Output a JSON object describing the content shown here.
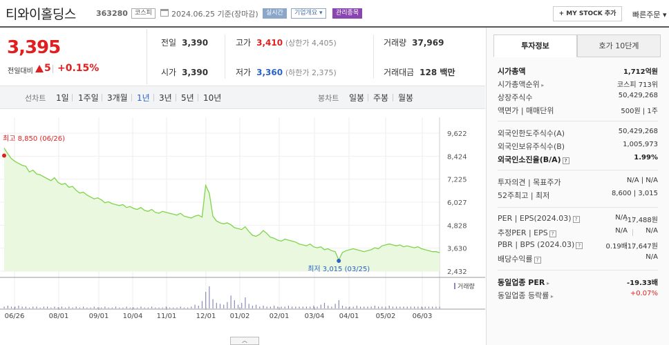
{
  "header": {
    "name": "티와이홀딩스",
    "code": "363280",
    "market": "코스피",
    "date": "2024.06.25 기준(장마감)",
    "live_badge": "실시간",
    "info_badge": "기업개요 ▾",
    "manage_badge": "관리종목",
    "mystock_button": "+ MY STOCK 추가",
    "quick_order": "빠른주문 ▾"
  },
  "price": {
    "current": "3,395",
    "change_label": "전일대비",
    "change": "5",
    "change_pct": "+0.15%"
  },
  "quote": {
    "prev_label": "전일",
    "prev": "3,390",
    "high_label": "고가",
    "high": "3,410",
    "upper": "(상한가 4,405)",
    "volume_label": "거래량",
    "volume": "37,969",
    "open_label": "시가",
    "open": "3,390",
    "low_label": "저가",
    "low": "3,360",
    "lower": "(하한가 2,375)",
    "amount_label": "거래대금",
    "amount": "128 백만"
  },
  "periods": {
    "line_label": "선차트",
    "line_items": [
      "1일",
      "1주일",
      "3개월",
      "1년",
      "3년",
      "5년",
      "10년"
    ],
    "active": "1년",
    "candle_label": "봉차트",
    "candle_items": [
      "일봉",
      "주봉",
      "월봉"
    ]
  },
  "chart_data": {
    "type": "area",
    "y_ticks": [
      "9,622",
      "8,424",
      "7,225",
      "6,027",
      "4,828",
      "3,630",
      "2,432"
    ],
    "ylim": [
      2432,
      9622
    ],
    "x_ticks": [
      "06/26",
      "08/01",
      "09/01",
      "10/04",
      "11/01",
      "12/01",
      "01/02",
      "02/01",
      "03/04",
      "04/01",
      "05/02",
      "06/03"
    ],
    "high_label": "최고 8,850 (06/26)",
    "low_label": "최저 3,015 (03/25)",
    "volume_label": "거래량",
    "line_color": "#7ed44a",
    "fill_color": "#eaf8df",
    "points": [
      8850,
      8550,
      8300,
      8150,
      8050,
      7950,
      7900,
      7600,
      7700,
      7500,
      7450,
      7350,
      7250,
      7150,
      7300,
      7050,
      6950,
      7000,
      6800,
      6850,
      6650,
      6500,
      6550,
      6400,
      6300,
      6200,
      6250,
      6150,
      6000,
      6050,
      5950,
      5900,
      5850,
      5900,
      5750,
      5800,
      5700,
      5650,
      5750,
      5600,
      5550,
      5650,
      5500,
      5450,
      5550,
      5500,
      5450,
      5400,
      5350,
      5450,
      5300,
      5250,
      5200,
      5300,
      5350,
      5250,
      6900,
      6500,
      5300,
      5050,
      4950,
      4900,
      4950,
      4850,
      4700,
      4650,
      4600,
      4750,
      4500,
      4300,
      4250,
      4350,
      4550,
      4400,
      4200,
      4150,
      4050,
      4000,
      4100,
      4050,
      4000,
      3950,
      3850,
      3800,
      3750,
      3850,
      3700,
      3650,
      3700,
      3550,
      3600,
      3500,
      3450,
      3015,
      3400,
      3500,
      3550,
      3600,
      3550,
      3500,
      3450,
      3500,
      3550,
      3650,
      3600,
      3750,
      3800,
      3850,
      3800,
      3750,
      3800,
      3700,
      3750,
      3700,
      3650,
      3700,
      3600,
      3550,
      3500,
      3450,
      3450,
      3395
    ],
    "volumes": [
      2,
      3,
      2,
      2,
      3,
      2,
      2,
      1,
      2,
      2,
      1,
      2,
      2,
      1,
      2,
      1,
      2,
      1,
      2,
      1,
      2,
      1,
      2,
      1,
      1,
      2,
      1,
      1,
      2,
      1,
      1,
      2,
      1,
      1,
      2,
      1,
      1,
      1,
      2,
      1,
      1,
      2,
      1,
      1,
      1,
      2,
      1,
      1,
      1,
      2,
      1,
      1,
      2,
      4,
      3,
      8,
      18,
      24,
      10,
      6,
      5,
      4,
      7,
      14,
      9,
      4,
      6,
      12,
      5,
      3,
      4,
      2,
      3,
      2,
      2,
      3,
      2,
      2,
      2,
      3,
      2,
      2,
      2,
      2,
      2,
      2,
      3,
      2,
      4,
      6,
      3,
      2,
      5,
      9,
      3,
      2,
      2,
      2,
      3,
      2,
      2,
      2,
      2,
      3,
      2,
      2,
      2,
      3,
      2,
      2,
      2,
      2,
      2,
      2,
      2,
      2,
      2,
      2,
      2,
      2,
      2,
      2
    ]
  },
  "panel": {
    "tab_active": "투자정보",
    "tab_other": "호가 10단계",
    "sec1": [
      {
        "k": "시가총액",
        "v": "1,712억원",
        "bold": true
      },
      {
        "k": "시가총액순위",
        "v": "코스피 713위",
        "arrow": true
      },
      {
        "k": "상장주식수",
        "v": "50,429,268"
      },
      {
        "k": "액면가 | 매매단위",
        "v": "500원 | 1주"
      }
    ],
    "sec2": [
      {
        "k": "외국인한도주식수(A)",
        "v": "50,429,268"
      },
      {
        "k": "외국인보유주식수(B)",
        "v": "1,005,973"
      },
      {
        "k": "외국인소진율(B/A)",
        "v": "1.99%",
        "bold": true,
        "q": true
      }
    ],
    "sec3": [
      {
        "k": "투자의견 | 목표주가",
        "v": "N/A | N/A"
      },
      {
        "k": "52주최고 | 최저",
        "v": "8,600 | 3,015"
      }
    ],
    "sec4": [
      {
        "k": "PER | EPS(2024.03)",
        "v1": "N/A",
        "v": "-17,488원",
        "q": true
      },
      {
        "k": "추정PER | EPS",
        "v1": "N/A",
        "v": "N/A",
        "q": true
      },
      {
        "k": "PBR | BPS (2024.03)",
        "v1": "0.19배",
        "v": "17,647원",
        "q": true
      },
      {
        "k": "배당수익률",
        "v": "N/A",
        "q": true
      }
    ],
    "sec5": [
      {
        "k": "동일업종 PER",
        "v": "-19.33배",
        "bold": true,
        "arrow": true
      },
      {
        "k": "동일업종 등락률",
        "v": "+0.07%",
        "red": true,
        "arrow": true
      }
    ]
  },
  "toggle": "︿"
}
